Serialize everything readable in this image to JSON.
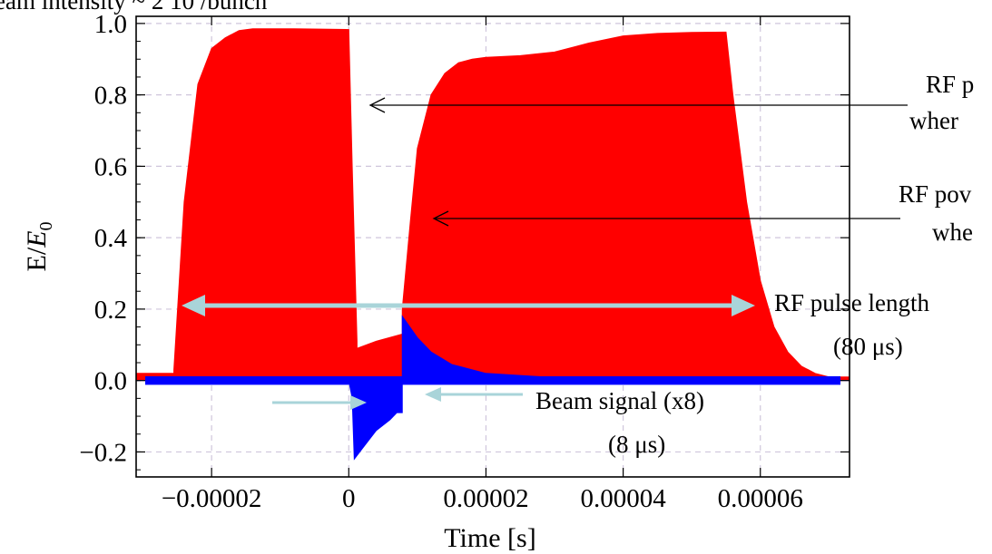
{
  "chart_data": {
    "type": "area",
    "title": "",
    "header_fragment": "eam intensity ~ 2 10 /bunch",
    "xlabel": "Time [s]",
    "ylabel_main": "E/",
    "ylabel_italic": "E",
    "ylabel_sub": "0",
    "xlim": [
      -3.1e-05,
      7.3e-05
    ],
    "ylim": [
      -0.27,
      1.02
    ],
    "grid": true,
    "x_ticks": [
      {
        "value": -2e-05,
        "label": "−0.00002"
      },
      {
        "value": 0,
        "label": "0"
      },
      {
        "value": 2e-05,
        "label": "0.00002"
      },
      {
        "value": 4e-05,
        "label": "0.00004"
      },
      {
        "value": 6e-05,
        "label": "0.00006"
      }
    ],
    "y_ticks": [
      {
        "value": -0.2,
        "label": "−0.2"
      },
      {
        "value": 0.0,
        "label": "0.0"
      },
      {
        "value": 0.2,
        "label": "0.2"
      },
      {
        "value": 0.4,
        "label": "0.4"
      },
      {
        "value": 0.6,
        "label": "0.6"
      },
      {
        "value": 0.8,
        "label": "0.8"
      },
      {
        "value": 1.0,
        "label": "1.0"
      }
    ],
    "series": [
      {
        "color": "#ff0000",
        "x": [
          -3.1e-05,
          -2.55e-05,
          -2.55e-05,
          -2.4e-05,
          -2.2e-05,
          -2e-05,
          -1.8e-05,
          -1.6e-05,
          -1.4e-05,
          -1.2e-05,
          -1e-05,
          -8e-06,
          -4e-06,
          0,
          5e-07,
          1.2e-06,
          1.2e-06,
          4e-06,
          7.8e-06,
          7.8e-06,
          9e-06,
          1e-05,
          1.2e-05,
          1.4e-05,
          1.6e-05,
          1.8e-05,
          2e-05,
          2.5e-05,
          3e-05,
          3.5e-05,
          4e-05,
          4.5e-05,
          5e-05,
          5.5e-05,
          5.6e-05,
          5.8e-05,
          6e-05,
          6.2e-05,
          6.4e-05,
          6.6e-05,
          6.8e-05,
          7e-05,
          7.3e-05
        ],
        "values": [
          0.02,
          0.02,
          0.03,
          0.5,
          0.83,
          0.93,
          0.96,
          0.98,
          0.985,
          0.985,
          0.985,
          0.985,
          0.984,
          0.983,
          0.6,
          0.11,
          0.09,
          0.11,
          0.13,
          0.2,
          0.45,
          0.65,
          0.8,
          0.86,
          0.89,
          0.9,
          0.905,
          0.91,
          0.92,
          0.945,
          0.965,
          0.972,
          0.975,
          0.976,
          0.8,
          0.5,
          0.28,
          0.15,
          0.08,
          0.04,
          0.02,
          0.01,
          0.01
        ]
      },
      {
        "color": "#0000ff",
        "x": [
          -3.1e-05,
          0,
          5e-07,
          8e-07,
          2e-06,
          4e-06,
          6e-06,
          7e-06,
          7.8e-06,
          7.8e-06,
          1e-05,
          1.2e-05,
          1.5e-05,
          2e-05,
          3e-05,
          4e-05,
          5e-05,
          6e-05,
          7e-05,
          7.3e-05
        ],
        "values": [
          0.0,
          0.0,
          -0.05,
          -0.22,
          -0.19,
          -0.14,
          -0.11,
          -0.09,
          -0.09,
          0.18,
          0.12,
          0.08,
          0.045,
          0.02,
          0.008,
          0.003,
          0.0,
          0.0,
          0.0,
          0.0
        ]
      }
    ],
    "annotations": [
      {
        "id": "rf-pulse-1",
        "lines": [
          "RF p",
          "wher"
        ]
      },
      {
        "id": "rf-power-2",
        "lines": [
          "RF pov",
          "whe"
        ]
      },
      {
        "id": "rf-pulse-length",
        "lines": [
          "RF pulse length",
          "(80 μs)"
        ]
      },
      {
        "id": "beam-signal",
        "lines": [
          "Beam signal (x8)",
          "(8 μs)"
        ]
      }
    ]
  },
  "colors": {
    "arrow_black": "#000000",
    "arrow_light": "#a9d4d9"
  }
}
